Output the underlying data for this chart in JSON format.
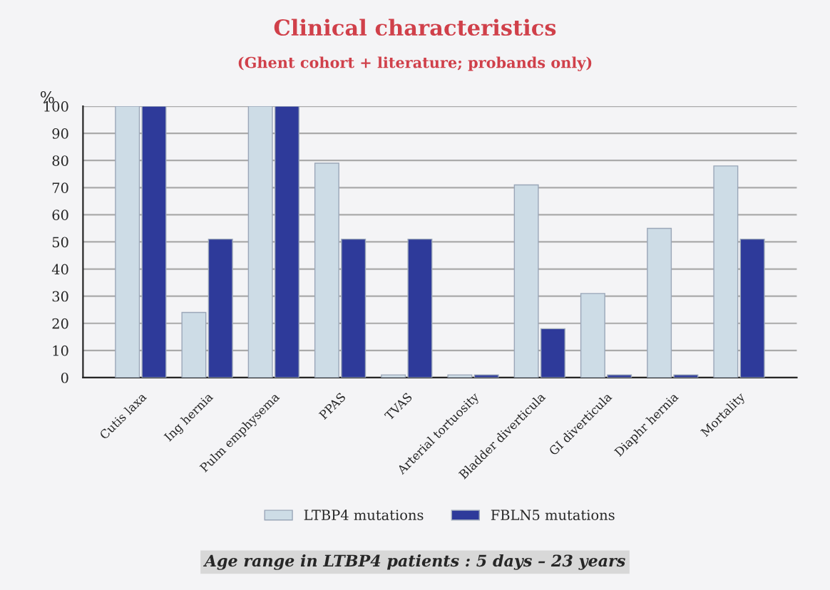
{
  "chart_data": {
    "type": "bar",
    "title": "Clinical characteristics",
    "subtitle": "(Ghent cohort + literature; probands only)",
    "ylabel": "%",
    "categories": [
      "Cutis laxa",
      "Ing hernia",
      "Pulm emphysema",
      "PPAS",
      "TVAS",
      "Arterial tortuosity",
      "Bladder diverticula",
      "GI diverticula",
      "Diaphr hernia",
      "Mortality"
    ],
    "series": [
      {
        "name": "LTBP4 mutations",
        "color": "#cddce6",
        "values": [
          100,
          24,
          100,
          79,
          1,
          1,
          71,
          31,
          55,
          78
        ]
      },
      {
        "name": "FBLN5 mutations",
        "color": "#2e3a9a",
        "values": [
          100,
          51,
          100,
          51,
          51,
          1,
          18,
          1,
          1,
          51
        ]
      }
    ],
    "ylim": [
      0,
      100
    ],
    "yticks": [
      0,
      10,
      20,
      30,
      40,
      50,
      60,
      70,
      80,
      90,
      100
    ],
    "grid": "y",
    "legend": "bottom",
    "annotations": [
      "Age range in LTBP4 patients : 5 days – 23 years"
    ]
  }
}
